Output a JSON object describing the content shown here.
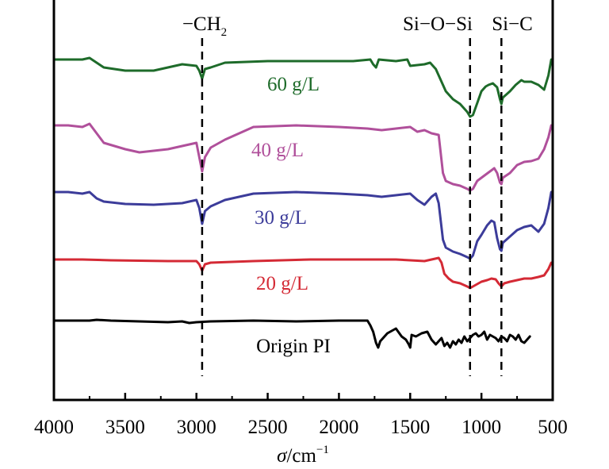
{
  "chart_data": {
    "type": "line",
    "title": "",
    "xlabel_symbol": "σ",
    "xlabel_unit": "/cm",
    "xlabel_exp": "−1",
    "ylabel": "",
    "xlim": [
      4000,
      500
    ],
    "x_ticks": [
      4000,
      3500,
      3000,
      2500,
      2000,
      1500,
      1000,
      500
    ],
    "x_tick_labels": [
      "4000",
      "3500",
      "3000",
      "2500",
      "2000",
      "1500",
      "1000",
      "500"
    ],
    "reference_lines": [
      {
        "x": 2960,
        "label": "−CH",
        "label_sub": "2"
      },
      {
        "x": 1080,
        "label": "Si−O−Si",
        "label_sub": ""
      },
      {
        "x": 860,
        "label": "Si−C",
        "label_sub": ""
      }
    ],
    "grid": false,
    "series": [
      {
        "name": "60 g/L",
        "color": "#1e6b2a",
        "baseline": 75,
        "points": [
          [
            4000,
            0
          ],
          [
            3800,
            0
          ],
          [
            3750,
            -2
          ],
          [
            3700,
            4
          ],
          [
            3650,
            10
          ],
          [
            3500,
            14
          ],
          [
            3300,
            14
          ],
          [
            3100,
            6
          ],
          [
            3000,
            8
          ],
          [
            2980,
            14
          ],
          [
            2960,
            24
          ],
          [
            2940,
            12
          ],
          [
            2900,
            10
          ],
          [
            2800,
            4
          ],
          [
            2500,
            2
          ],
          [
            2200,
            2
          ],
          [
            1900,
            2
          ],
          [
            1780,
            0
          ],
          [
            1760,
            6
          ],
          [
            1740,
            10
          ],
          [
            1720,
            0
          ],
          [
            1600,
            2
          ],
          [
            1520,
            0
          ],
          [
            1500,
            8
          ],
          [
            1400,
            6
          ],
          [
            1360,
            4
          ],
          [
            1320,
            12
          ],
          [
            1300,
            20
          ],
          [
            1250,
            40
          ],
          [
            1200,
            50
          ],
          [
            1150,
            56
          ],
          [
            1100,
            66
          ],
          [
            1080,
            72
          ],
          [
            1060,
            70
          ],
          [
            1030,
            55
          ],
          [
            1000,
            40
          ],
          [
            970,
            34
          ],
          [
            950,
            32
          ],
          [
            920,
            30
          ],
          [
            890,
            35
          ],
          [
            870,
            50
          ],
          [
            860,
            56
          ],
          [
            850,
            48
          ],
          [
            800,
            40
          ],
          [
            760,
            32
          ],
          [
            720,
            26
          ],
          [
            700,
            28
          ],
          [
            650,
            28
          ],
          [
            600,
            32
          ],
          [
            560,
            38
          ],
          [
            530,
            20
          ],
          [
            510,
            0
          ]
        ]
      },
      {
        "name": "40 g/L",
        "color": "#b0509b",
        "baseline": 158,
        "points": [
          [
            4000,
            0
          ],
          [
            3900,
            0
          ],
          [
            3800,
            2
          ],
          [
            3750,
            -2
          ],
          [
            3700,
            10
          ],
          [
            3650,
            22
          ],
          [
            3500,
            30
          ],
          [
            3400,
            34
          ],
          [
            3200,
            30
          ],
          [
            3000,
            22
          ],
          [
            2980,
            40
          ],
          [
            2960,
            58
          ],
          [
            2940,
            40
          ],
          [
            2900,
            28
          ],
          [
            2800,
            18
          ],
          [
            2600,
            2
          ],
          [
            2300,
            0
          ],
          [
            2000,
            2
          ],
          [
            1800,
            4
          ],
          [
            1700,
            6
          ],
          [
            1600,
            4
          ],
          [
            1500,
            2
          ],
          [
            1450,
            8
          ],
          [
            1400,
            6
          ],
          [
            1350,
            10
          ],
          [
            1300,
            12
          ],
          [
            1270,
            60
          ],
          [
            1250,
            70
          ],
          [
            1200,
            74
          ],
          [
            1150,
            76
          ],
          [
            1100,
            80
          ],
          [
            1080,
            82
          ],
          [
            1060,
            80
          ],
          [
            1030,
            70
          ],
          [
            1000,
            66
          ],
          [
            970,
            62
          ],
          [
            940,
            58
          ],
          [
            910,
            54
          ],
          [
            890,
            60
          ],
          [
            870,
            72
          ],
          [
            860,
            74
          ],
          [
            850,
            66
          ],
          [
            800,
            60
          ],
          [
            750,
            50
          ],
          [
            700,
            46
          ],
          [
            650,
            45
          ],
          [
            600,
            42
          ],
          [
            560,
            30
          ],
          [
            530,
            15
          ],
          [
            510,
            0
          ]
        ]
      },
      {
        "name": "30 g/L",
        "color": "#3c3c9a",
        "baseline": 242,
        "points": [
          [
            4000,
            0
          ],
          [
            3900,
            0
          ],
          [
            3800,
            2
          ],
          [
            3750,
            0
          ],
          [
            3700,
            8
          ],
          [
            3650,
            12
          ],
          [
            3500,
            15
          ],
          [
            3300,
            16
          ],
          [
            3100,
            14
          ],
          [
            3000,
            10
          ],
          [
            2980,
            20
          ],
          [
            2960,
            40
          ],
          [
            2940,
            24
          ],
          [
            2900,
            18
          ],
          [
            2800,
            10
          ],
          [
            2600,
            2
          ],
          [
            2300,
            0
          ],
          [
            2000,
            2
          ],
          [
            1800,
            4
          ],
          [
            1700,
            6
          ],
          [
            1600,
            4
          ],
          [
            1500,
            2
          ],
          [
            1450,
            10
          ],
          [
            1400,
            16
          ],
          [
            1350,
            6
          ],
          [
            1320,
            2
          ],
          [
            1300,
            14
          ],
          [
            1270,
            60
          ],
          [
            1250,
            70
          ],
          [
            1200,
            75
          ],
          [
            1150,
            78
          ],
          [
            1100,
            82
          ],
          [
            1080,
            84
          ],
          [
            1060,
            80
          ],
          [
            1030,
            62
          ],
          [
            1000,
            54
          ],
          [
            960,
            42
          ],
          [
            930,
            36
          ],
          [
            910,
            38
          ],
          [
            890,
            58
          ],
          [
            870,
            72
          ],
          [
            860,
            74
          ],
          [
            850,
            64
          ],
          [
            800,
            56
          ],
          [
            750,
            48
          ],
          [
            700,
            44
          ],
          [
            650,
            42
          ],
          [
            600,
            50
          ],
          [
            560,
            40
          ],
          [
            530,
            20
          ],
          [
            510,
            0
          ]
        ]
      },
      {
        "name": "20 g/L",
        "color": "#d42a35",
        "baseline": 327,
        "points": [
          [
            4000,
            0
          ],
          [
            3800,
            0
          ],
          [
            3600,
            1
          ],
          [
            3200,
            2
          ],
          [
            3000,
            2
          ],
          [
            2980,
            6
          ],
          [
            2960,
            14
          ],
          [
            2940,
            6
          ],
          [
            2900,
            4
          ],
          [
            2600,
            2
          ],
          [
            2200,
            0
          ],
          [
            1900,
            0
          ],
          [
            1600,
            0
          ],
          [
            1400,
            2
          ],
          [
            1300,
            -2
          ],
          [
            1280,
            4
          ],
          [
            1260,
            18
          ],
          [
            1230,
            24
          ],
          [
            1200,
            28
          ],
          [
            1150,
            30
          ],
          [
            1100,
            34
          ],
          [
            1080,
            36
          ],
          [
            1060,
            34
          ],
          [
            1000,
            28
          ],
          [
            960,
            26
          ],
          [
            930,
            24
          ],
          [
            900,
            25
          ],
          [
            880,
            30
          ],
          [
            860,
            34
          ],
          [
            840,
            30
          ],
          [
            800,
            28
          ],
          [
            750,
            26
          ],
          [
            700,
            24
          ],
          [
            650,
            24
          ],
          [
            600,
            22
          ],
          [
            560,
            20
          ],
          [
            530,
            12
          ],
          [
            510,
            4
          ]
        ]
      },
      {
        "name": "Origin PI",
        "color": "#000000",
        "baseline": 404,
        "points": [
          [
            4000,
            0
          ],
          [
            3750,
            0
          ],
          [
            3700,
            -1
          ],
          [
            3600,
            0
          ],
          [
            3400,
            1
          ],
          [
            3200,
            2
          ],
          [
            3100,
            1
          ],
          [
            3050,
            3
          ],
          [
            3000,
            2
          ],
          [
            2900,
            1
          ],
          [
            2600,
            0
          ],
          [
            2300,
            1
          ],
          [
            2000,
            0
          ],
          [
            1800,
            0
          ],
          [
            1780,
            6
          ],
          [
            1760,
            14
          ],
          [
            1740,
            28
          ],
          [
            1725,
            34
          ],
          [
            1710,
            26
          ],
          [
            1690,
            22
          ],
          [
            1660,
            16
          ],
          [
            1620,
            12
          ],
          [
            1600,
            10
          ],
          [
            1560,
            20
          ],
          [
            1530,
            24
          ],
          [
            1510,
            30
          ],
          [
            1500,
            34
          ],
          [
            1490,
            18
          ],
          [
            1460,
            20
          ],
          [
            1420,
            16
          ],
          [
            1380,
            14
          ],
          [
            1350,
            24
          ],
          [
            1320,
            30
          ],
          [
            1300,
            26
          ],
          [
            1280,
            22
          ],
          [
            1260,
            32
          ],
          [
            1240,
            28
          ],
          [
            1220,
            34
          ],
          [
            1200,
            26
          ],
          [
            1180,
            30
          ],
          [
            1160,
            24
          ],
          [
            1140,
            28
          ],
          [
            1120,
            20
          ],
          [
            1100,
            26
          ],
          [
            1080,
            22
          ],
          [
            1060,
            18
          ],
          [
            1040,
            16
          ],
          [
            1020,
            20
          ],
          [
            1000,
            18
          ],
          [
            980,
            14
          ],
          [
            960,
            24
          ],
          [
            940,
            18
          ],
          [
            920,
            20
          ],
          [
            900,
            22
          ],
          [
            880,
            26
          ],
          [
            860,
            20
          ],
          [
            840,
            22
          ],
          [
            820,
            26
          ],
          [
            800,
            18
          ],
          [
            780,
            20
          ],
          [
            760,
            24
          ],
          [
            740,
            18
          ],
          [
            720,
            26
          ],
          [
            700,
            28
          ],
          [
            680,
            24
          ],
          [
            660,
            20
          ]
        ]
      }
    ]
  }
}
